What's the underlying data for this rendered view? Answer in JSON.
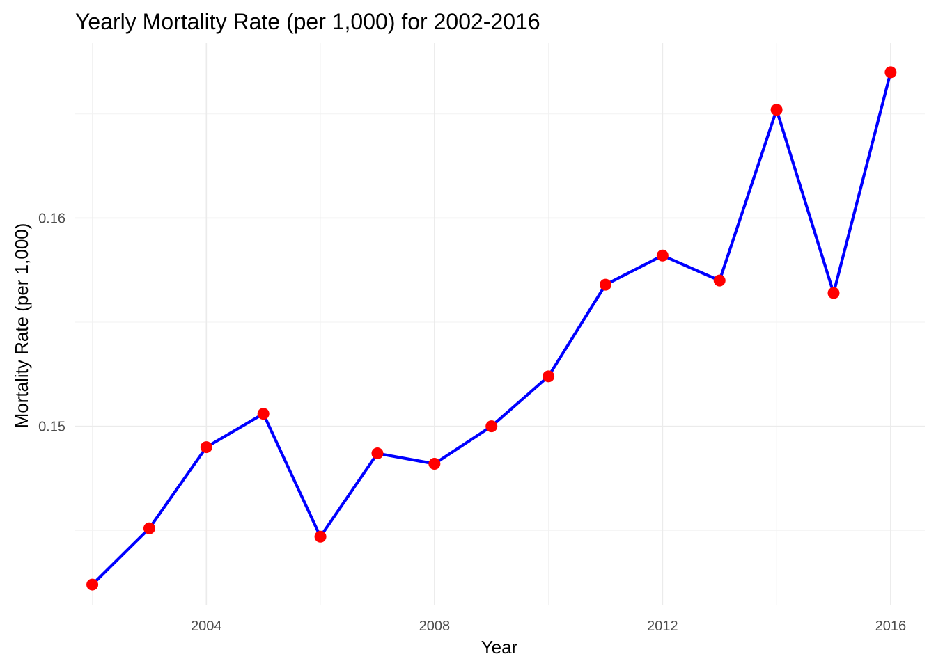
{
  "chart_data": {
    "type": "line",
    "title": "Yearly Mortality Rate (per 1,000) for 2002-2016",
    "xlabel": "Year",
    "ylabel": "Mortality Rate (per 1,000)",
    "x": [
      2002,
      2003,
      2004,
      2005,
      2006,
      2007,
      2008,
      2009,
      2010,
      2011,
      2012,
      2013,
      2014,
      2015,
      2016
    ],
    "series": [
      {
        "values": [
          0.1424,
          0.1451,
          0.149,
          0.1506,
          0.1447,
          0.1487,
          0.1482,
          0.15,
          0.1524,
          0.1568,
          0.1582,
          0.157,
          0.1652,
          0.1564,
          0.167
        ],
        "line_color": "#0000ff",
        "point_color": "#ff0000"
      }
    ],
    "x_ticks": [
      2004,
      2008,
      2012,
      2016
    ],
    "x_tick_labels": [
      "2004",
      "2008",
      "2012",
      "2016"
    ],
    "y_ticks": [
      0.15,
      0.16
    ],
    "y_tick_labels": [
      "0.15",
      "0.16"
    ],
    "xlim": [
      2001.7,
      2016.6
    ],
    "ylim": [
      0.1414,
      0.1684
    ],
    "grid": true,
    "legend": "none"
  }
}
